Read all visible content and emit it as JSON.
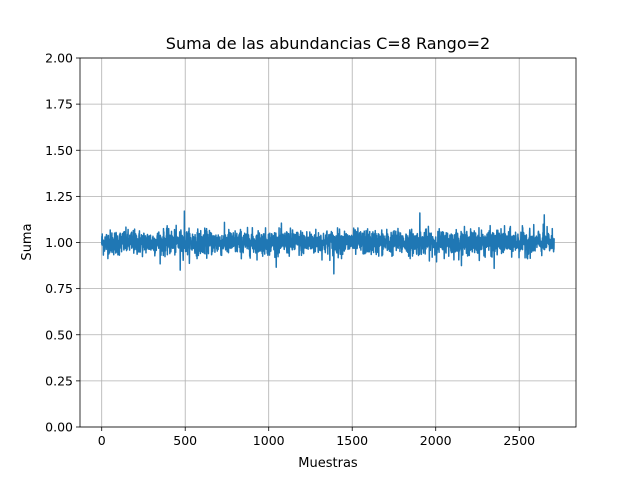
{
  "chart_data": {
    "type": "line",
    "title": "Suma de las abundancias C=8 Rango=2",
    "xlabel": "Muestras",
    "ylabel": "Suma",
    "xlim": [
      -130,
      2840
    ],
    "ylim": [
      0,
      2
    ],
    "xticks": [
      0,
      500,
      1000,
      1500,
      2000,
      2500
    ],
    "xtick_labels": [
      "0",
      "500",
      "1000",
      "1500",
      "2000",
      "2500"
    ],
    "yticks": [
      0,
      0.25,
      0.5,
      0.75,
      1.0,
      1.25,
      1.5,
      1.75,
      2.0
    ],
    "ytick_labels": [
      "0.00",
      "0.25",
      "0.50",
      "0.75",
      "1.00",
      "1.25",
      "1.50",
      "1.75",
      "2.00"
    ],
    "grid": true,
    "series": [
      {
        "color": "#1f77b4",
        "n_samples": 2710,
        "mean": 1.0,
        "typical_min": 0.9,
        "typical_max": 1.1,
        "observed_min": 0.83,
        "observed_max": 1.17,
        "notable_points": [
          {
            "x": 495,
            "y": 1.17
          },
          {
            "x": 1905,
            "y": 1.16
          },
          {
            "x": 2650,
            "y": 1.15
          },
          {
            "x": 470,
            "y": 0.85
          },
          {
            "x": 1390,
            "y": 0.83
          },
          {
            "x": 2350,
            "y": 0.86
          }
        ]
      }
    ]
  }
}
